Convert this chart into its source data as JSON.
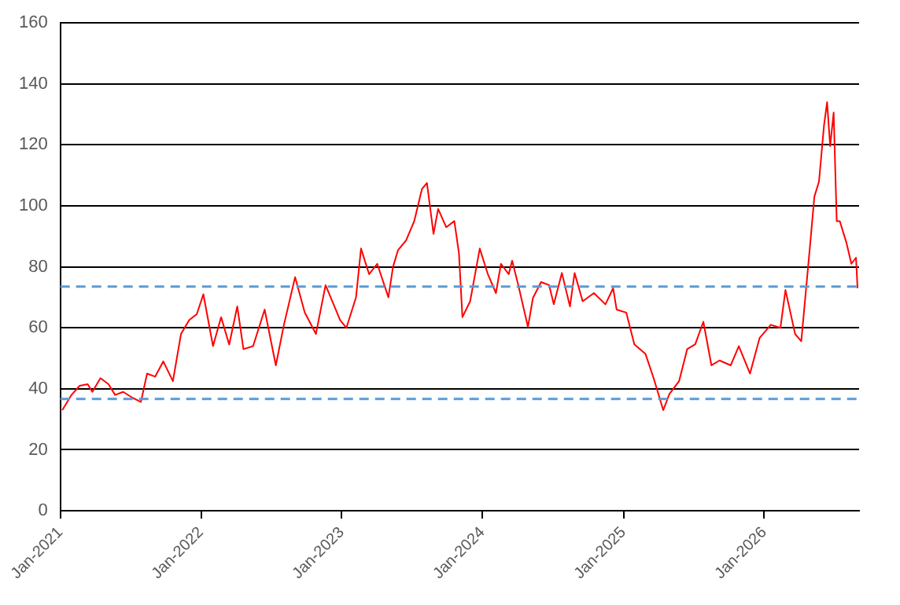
{
  "chart_data": {
    "type": "line",
    "x": [
      "2021-01-06",
      "2021-01-30",
      "2021-02-20",
      "2021-03-13",
      "2021-03-25",
      "2021-04-15",
      "2021-05-06",
      "2021-05-23",
      "2021-06-13",
      "2021-07-08",
      "2021-07-29",
      "2021-08-14",
      "2021-09-04",
      "2021-09-25",
      "2021-10-20",
      "2021-11-10",
      "2021-12-01",
      "2021-12-21",
      "2022-01-07",
      "2022-02-01",
      "2022-02-22",
      "2022-03-15",
      "2022-04-05",
      "2022-04-21",
      "2022-05-16",
      "2022-06-15",
      "2022-07-14",
      "2022-08-04",
      "2022-09-02",
      "2022-09-27",
      "2022-10-26",
      "2022-11-20",
      "2022-12-28",
      "2023-01-13",
      "2023-02-07",
      "2023-02-20",
      "2023-03-13",
      "2023-04-03",
      "2023-05-02",
      "2023-05-14",
      "2023-05-27",
      "2023-06-17",
      "2023-07-08",
      "2023-07-28",
      "2023-08-10",
      "2023-08-27",
      "2023-09-08",
      "2023-09-29",
      "2023-10-20",
      "2023-11-01",
      "2023-11-10",
      "2023-11-30",
      "2023-12-25",
      "2024-01-15",
      "2024-02-05",
      "2024-02-18",
      "2024-03-09",
      "2024-03-18",
      "2024-04-03",
      "2024-04-28",
      "2024-05-11",
      "2024-06-01",
      "2024-06-22",
      "2024-07-04",
      "2024-07-25",
      "2024-08-15",
      "2024-08-27",
      "2024-09-17",
      "2024-10-16",
      "2024-11-15",
      "2024-12-05",
      "2024-12-14",
      "2025-01-08",
      "2025-01-29",
      "2025-02-27",
      "2025-03-20",
      "2025-04-14",
      "2025-04-30",
      "2025-05-25",
      "2025-06-15",
      "2025-07-06",
      "2025-07-27",
      "2025-08-17",
      "2025-09-07",
      "2025-10-06",
      "2025-10-27",
      "2025-11-25",
      "2025-12-20",
      "2026-01-18",
      "2026-02-12",
      "2026-02-25",
      "2026-03-22",
      "2026-04-07",
      "2026-04-28",
      "2026-05-11",
      "2026-05-23",
      "2026-06-05",
      "2026-06-13",
      "2026-06-21",
      "2026-06-30",
      "2026-07-08",
      "2026-07-16",
      "2026-08-02",
      "2026-08-15",
      "2026-08-27",
      "2026-08-31"
    ],
    "series": [
      {
        "color": "#ff0000",
        "values": [
          33,
          38,
          41,
          41.5,
          39,
          43.5,
          41.5,
          38,
          39,
          37,
          35.7,
          45,
          44,
          49,
          42.5,
          58,
          62.5,
          64.5,
          71,
          54,
          63.5,
          54.5,
          67,
          53,
          54,
          66,
          47.7,
          61,
          76.6,
          65,
          58,
          74,
          62.5,
          60,
          70,
          86,
          77.6,
          81,
          70,
          80,
          85.5,
          88.7,
          95,
          105.5,
          107.5,
          90.8,
          99,
          93,
          95,
          84.5,
          63.5,
          68.7,
          86,
          77.6,
          71.4,
          81,
          77.6,
          82,
          74,
          60.3,
          69.8,
          75,
          74,
          67.7,
          78,
          67,
          78,
          68.7,
          71.4,
          67.7,
          73,
          66,
          65,
          54.6,
          51.4,
          43.5,
          33,
          38.3,
          42.5,
          53,
          54.6,
          62,
          47.7,
          49.3,
          47.7,
          54,
          45,
          56.7,
          61,
          60,
          72.4,
          58,
          55.6,
          84.5,
          103,
          108,
          126.4,
          134,
          119.6,
          130.6,
          95,
          95,
          88,
          81,
          83,
          73
        ]
      }
    ],
    "xlim": [
      "2021-01-01",
      "2026-09-04"
    ],
    "xticks": [
      {
        "value": "2021-01-01",
        "label": "Jan-2021"
      },
      {
        "value": "2022-01-01",
        "label": "Jan-2022"
      },
      {
        "value": "2023-01-01",
        "label": "Jan-2023"
      },
      {
        "value": "2024-01-01",
        "label": "Jan-2024"
      },
      {
        "value": "2025-01-01",
        "label": "Jan-2025"
      },
      {
        "value": "2026-01-01",
        "label": "Jan-2026"
      }
    ],
    "ylim": [
      0,
      160
    ],
    "yticks": [
      0,
      20,
      40,
      60,
      80,
      100,
      120,
      140,
      160
    ],
    "grid": "y",
    "marker": "none",
    "line_style": "solid",
    "legend": false,
    "ref_lines": [
      {
        "axis": "y",
        "value": 73.5,
        "color": "#5b9bd5",
        "line_style": "dashed"
      },
      {
        "axis": "y",
        "value": 36.7,
        "color": "#5b9bd5",
        "line_style": "dashed"
      }
    ]
  }
}
